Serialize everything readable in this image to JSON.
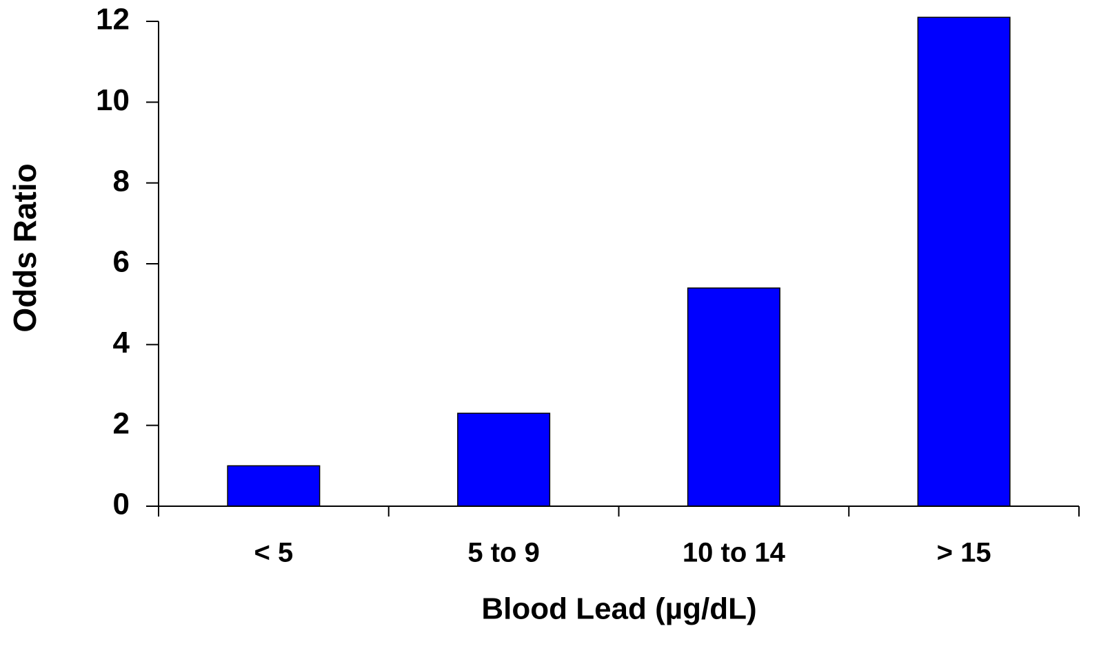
{
  "chart_data": {
    "type": "bar",
    "categories": [
      "< 5",
      "5 to 9",
      "10 to 14",
      "> 15"
    ],
    "values": [
      1.0,
      2.3,
      5.4,
      12.1
    ],
    "color": "#0000ff",
    "ylim": [
      0,
      12
    ],
    "yticks": [
      0,
      2,
      4,
      6,
      8,
      10,
      12
    ],
    "x_label": "Blood Lead (µg/dL)",
    "y_label": "Odds Ratio",
    "grid": false
  }
}
